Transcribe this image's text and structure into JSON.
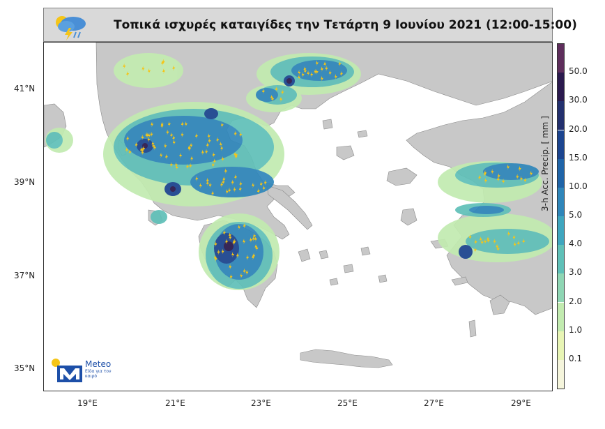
{
  "title": "Τοπικά ισχυρές καταιγίδες την Τετάρτη 9 Ιουνίου 2021 (12:00-15:00)",
  "map": {
    "lat_labels": [
      "41°N",
      "39°N",
      "37°N",
      "35°N"
    ],
    "lon_labels": [
      "19°E",
      "21°E",
      "23°E",
      "25°E",
      "27°E",
      "29°E"
    ],
    "land_color": "#c8c8c8",
    "sea_color": "#ffffff"
  },
  "colorbar": {
    "title": "3-h Acc. Precip. [ mm ]",
    "labels": [
      "50.0",
      "30.0",
      "20.0",
      "15.0",
      "10.0",
      "5.0",
      "4.0",
      "3.0",
      "2.0",
      "1.0",
      "0.1"
    ],
    "colors": [
      "#f5f5dc",
      "#e8f5b5",
      "#c2ebb0",
      "#8fd6b4",
      "#5fc0b8",
      "#3fa6bf",
      "#2f86ba",
      "#1f64a8",
      "#1c4590",
      "#23306e",
      "#2b1a4e",
      "#5e2e5c"
    ]
  },
  "logo": {
    "name": "Meteo",
    "tagline": "Είδα για τον καιρό",
    "brand_color": "#1d4fa8",
    "sun_color": "#f5c518"
  },
  "icons": [
    "weather-storm-icon",
    "lightning-icon"
  ]
}
